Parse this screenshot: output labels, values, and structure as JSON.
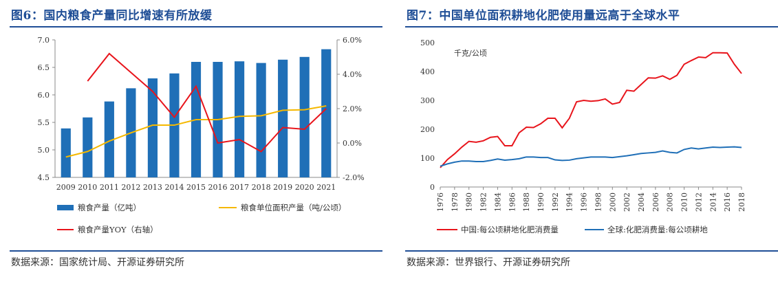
{
  "chart_data": [
    {
      "type": "bar",
      "title": "图6：国内粮食产量同比增速有所放缓",
      "categories": [
        "2009",
        "2010",
        "2011",
        "2012",
        "2013",
        "2014",
        "2015",
        "2016",
        "2017",
        "2018",
        "2019",
        "2020",
        "2021"
      ],
      "series": [
        {
          "name": "粮食产量（亿吨）",
          "type": "bar",
          "axis": "left",
          "color": "#1f6fb7",
          "values": [
            5.39,
            5.59,
            5.88,
            6.12,
            6.3,
            6.39,
            6.6,
            6.6,
            6.61,
            6.58,
            6.64,
            6.69,
            6.83
          ]
        },
        {
          "name": "粮食单位面积产量（吨/公顷）",
          "type": "line",
          "axis": "left",
          "color": "#f5b800",
          "values": [
            4.87,
            4.97,
            5.16,
            5.31,
            5.45,
            5.45,
            5.55,
            5.55,
            5.61,
            5.62,
            5.72,
            5.73,
            5.8
          ]
        },
        {
          "name": "粮食产量YOY（右轴）",
          "type": "line",
          "axis": "right",
          "color": "#e8141b",
          "values": [
            null,
            3.6,
            5.2,
            4.1,
            3.0,
            1.5,
            3.3,
            0.0,
            0.2,
            -0.5,
            0.9,
            0.8,
            2.0
          ]
        }
      ],
      "ylim": [
        4.5,
        7.0
      ],
      "yticks": [
        "4.5",
        "5.0",
        "5.5",
        "6.0",
        "6.5",
        "7.0"
      ],
      "y2lim": [
        -2.0,
        6.0
      ],
      "y2ticks": [
        "-2.0%",
        "0.0%",
        "2.0%",
        "4.0%",
        "6.0%"
      ],
      "legend": "bottom",
      "source": "数据来源：国家统计局、开源证券研究所"
    },
    {
      "type": "line",
      "title": "图7：中国单位面积耕地化肥使用量远高于全球水平",
      "unit_label": "千克/公顷",
      "x": [
        1976,
        1977,
        1978,
        1979,
        1980,
        1981,
        1982,
        1983,
        1984,
        1985,
        1986,
        1987,
        1988,
        1989,
        1990,
        1991,
        1992,
        1993,
        1994,
        1995,
        1996,
        1997,
        1998,
        1999,
        2000,
        2001,
        2002,
        2003,
        2004,
        2005,
        2006,
        2007,
        2008,
        2009,
        2010,
        2011,
        2012,
        2013,
        2014,
        2015,
        2016,
        2017,
        2018
      ],
      "xticks": [
        "1976",
        "1978",
        "1980",
        "1982",
        "1984",
        "1986",
        "1988",
        "1990",
        "1992",
        "1994",
        "1996",
        "1998",
        "2000",
        "2002",
        "2004",
        "2006",
        "2008",
        "2010",
        "2012",
        "2014",
        "2016",
        "2018"
      ],
      "series": [
        {
          "name": "中国:每公顷耕地化肥消费量",
          "color": "#e8141b",
          "values": [
            67,
            95,
            115,
            138,
            158,
            155,
            160,
            172,
            175,
            143,
            143,
            188,
            207,
            206,
            219,
            238,
            238,
            205,
            238,
            295,
            300,
            297,
            299,
            305,
            287,
            293,
            335,
            332,
            355,
            378,
            377,
            385,
            373,
            387,
            425,
            438,
            450,
            448,
            465,
            465,
            464,
            425,
            393
          ]
        },
        {
          "name": "全球:化肥消费量:每公顷耕地",
          "color": "#1f6fb7",
          "values": [
            72,
            80,
            86,
            90,
            90,
            88,
            88,
            92,
            97,
            93,
            95,
            98,
            104,
            104,
            102,
            102,
            94,
            92,
            93,
            98,
            101,
            104,
            104,
            104,
            102,
            105,
            108,
            112,
            116,
            118,
            120,
            125,
            120,
            118,
            130,
            135,
            132,
            135,
            138,
            137,
            138,
            139,
            137
          ]
        }
      ],
      "ylim": [
        0,
        500
      ],
      "yticks": [
        "0",
        "100",
        "200",
        "300",
        "400",
        "500"
      ],
      "legend": "bottom",
      "source": "数据来源：世界银行、开源证券研究所"
    }
  ]
}
